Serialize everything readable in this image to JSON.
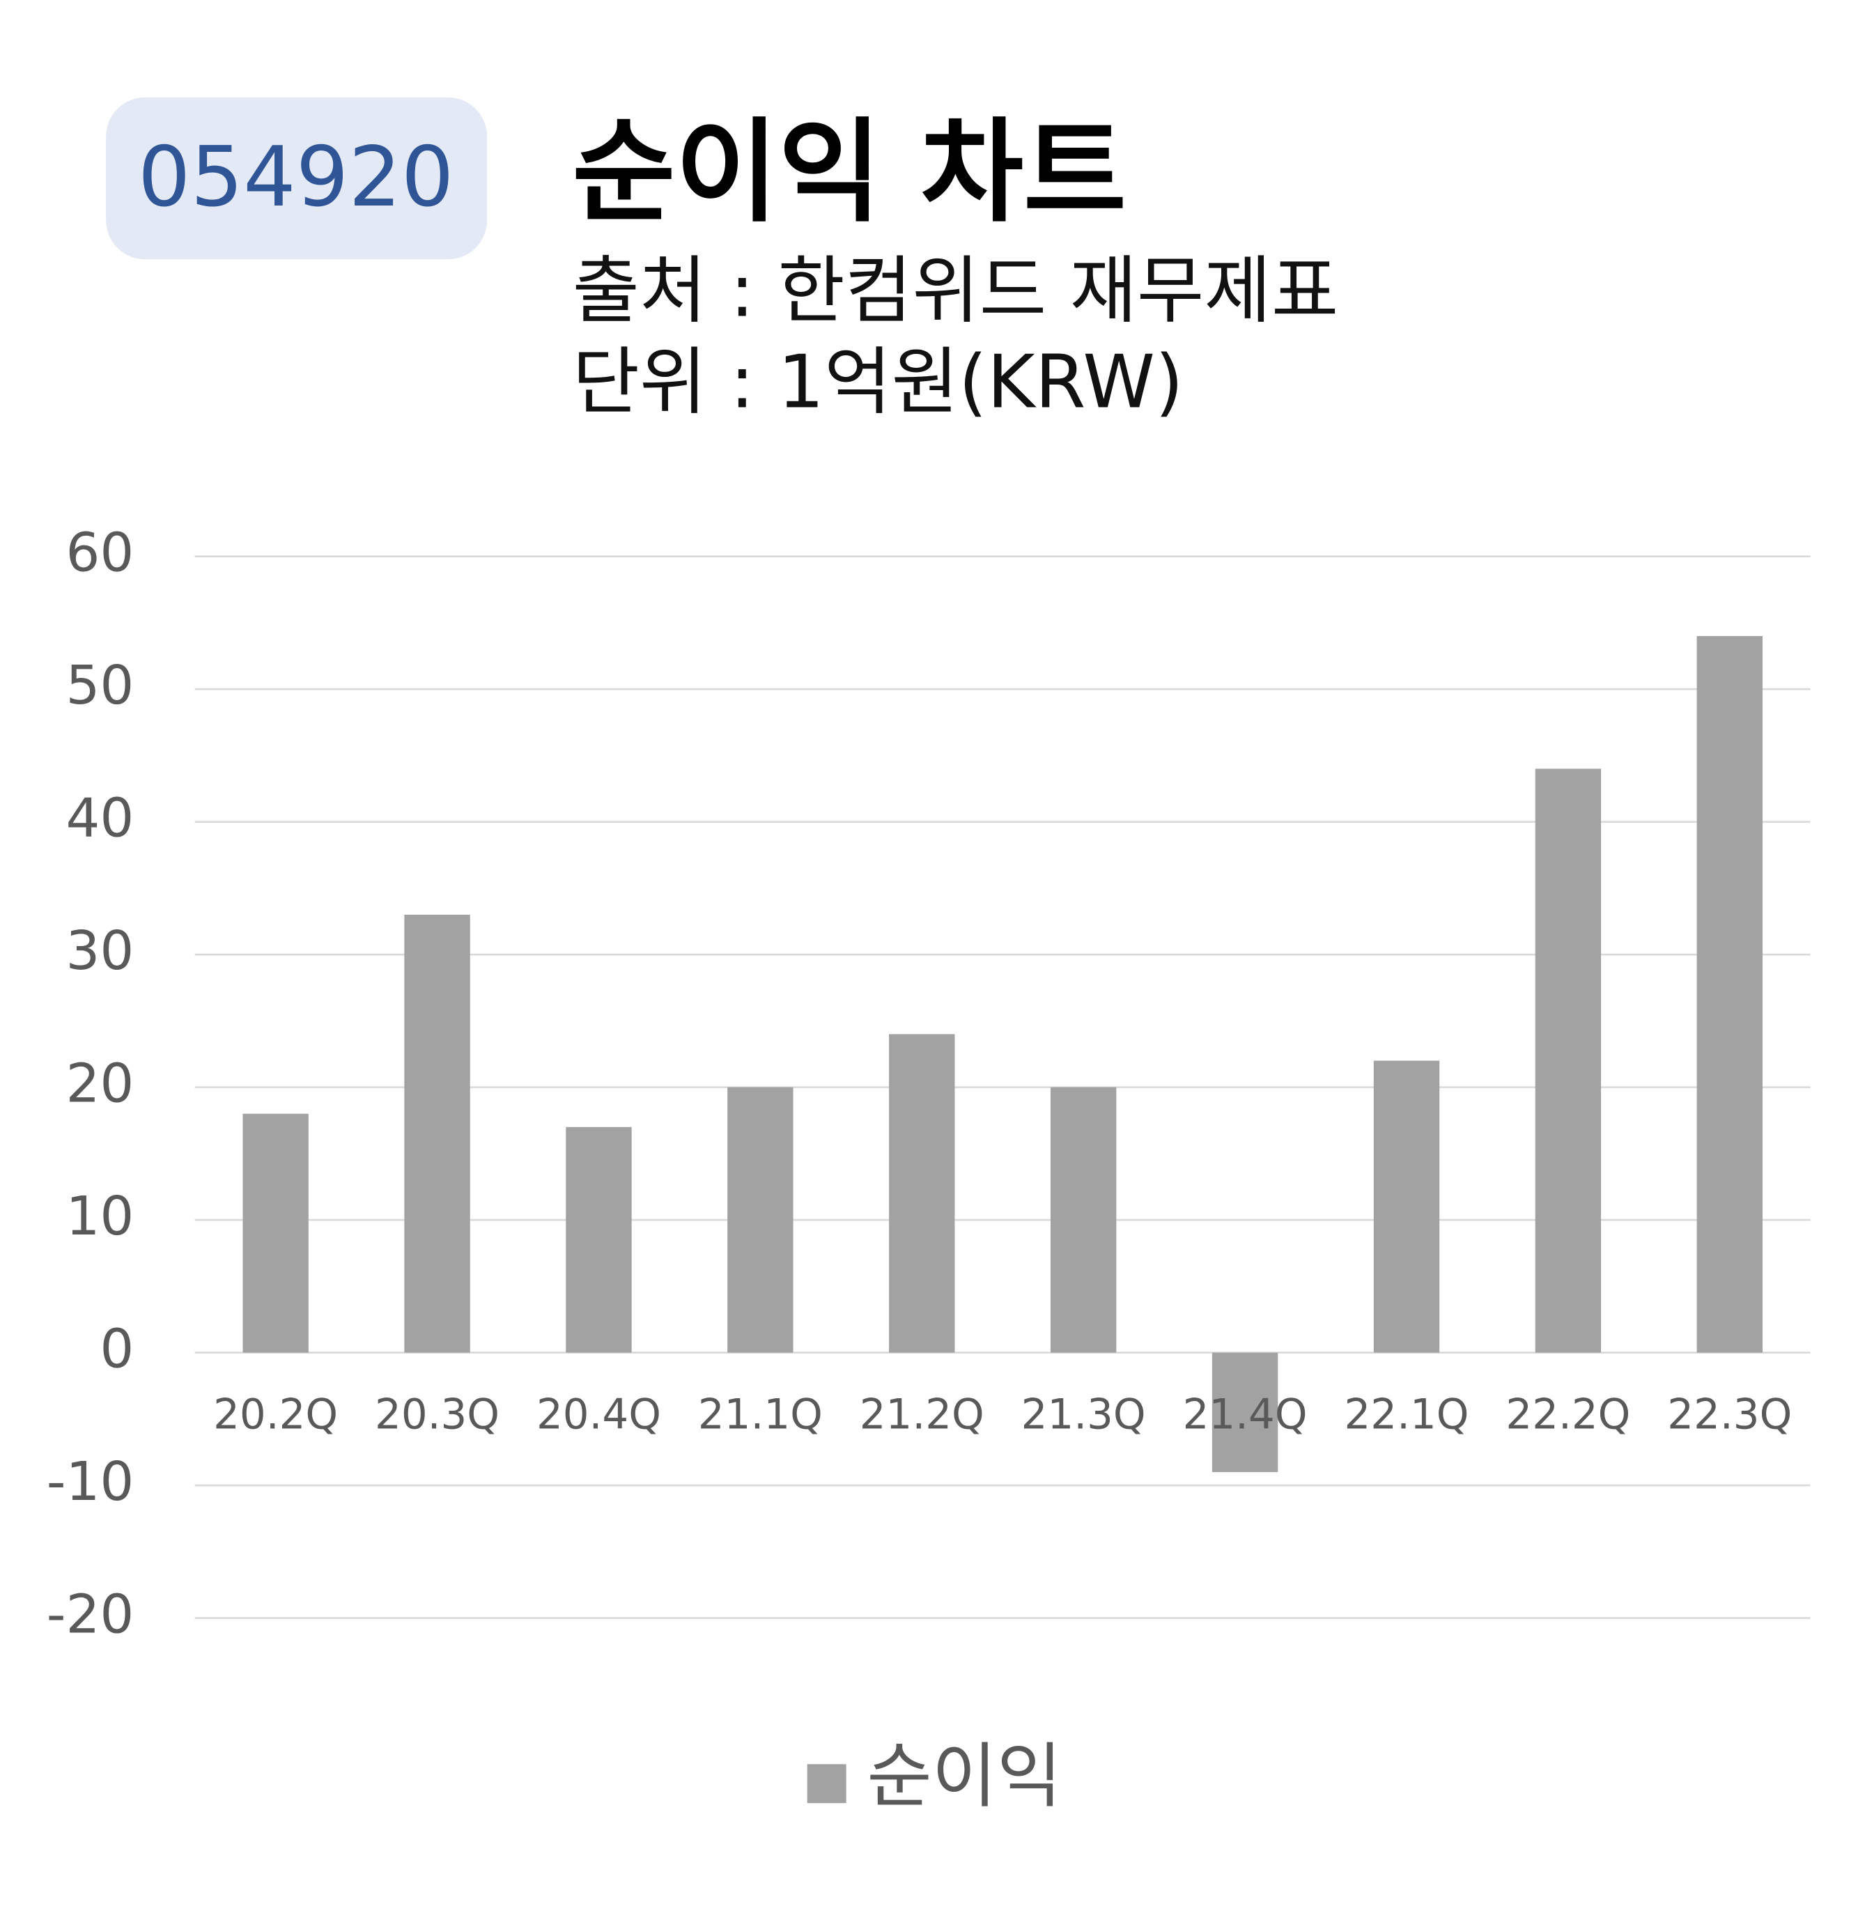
{
  "code": "054920",
  "chart_data": {
    "type": "bar",
    "title": "순이익 차트",
    "subtitle": [
      "출처 : 한컴위드 재무제표",
      "단위 : 1억원(KRW)"
    ],
    "categories": [
      "20.2Q",
      "20.3Q",
      "20.4Q",
      "21.1Q",
      "21.2Q",
      "21.3Q",
      "21.4Q",
      "22.1Q",
      "22.2Q",
      "22.3Q"
    ],
    "series": [
      {
        "name": "순이익",
        "color": "#a2a2a2",
        "values": [
          18,
          33,
          17,
          20,
          24,
          20,
          -9,
          22,
          44,
          54
        ]
      }
    ],
    "ylim": [
      -20,
      60
    ],
    "yticks": [
      -20,
      -10,
      0,
      10,
      20,
      30,
      40,
      50,
      60
    ],
    "grid": true,
    "legend": "bottom"
  }
}
